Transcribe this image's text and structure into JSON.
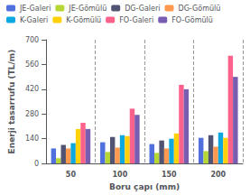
{
  "chart_data": {
    "type": "bar",
    "xlabel": "Boru çapı (mm)",
    "ylabel": "Enerji tasarrufu (TL/m)",
    "categories": [
      "50",
      "100",
      "150",
      "200"
    ],
    "series": [
      {
        "name": "JE-Galeri",
        "values": [
          85,
          120,
          110,
          145
        ]
      },
      {
        "name": "JE-Gömülü",
        "values": [
          30,
          65,
          60,
          70
        ]
      },
      {
        "name": "DG-Galeri",
        "values": [
          105,
          150,
          130,
          160
        ]
      },
      {
        "name": "DG-Gömülü",
        "values": [
          85,
          90,
          85,
          95
        ]
      },
      {
        "name": "K-Galeri",
        "values": [
          115,
          160,
          140,
          175
        ]
      },
      {
        "name": "K-Gömülü",
        "values": [
          195,
          155,
          170,
          145
        ]
      },
      {
        "name": "FO-Galeri",
        "values": [
          230,
          310,
          445,
          610
        ]
      },
      {
        "name": "FO-Gömülü",
        "values": [
          195,
          275,
          420,
          490
        ]
      }
    ],
    "ylim": [
      0,
      700
    ],
    "yticks": [
      0,
      140,
      280,
      420,
      560,
      700
    ],
    "grid": false,
    "legend": "upper left"
  }
}
